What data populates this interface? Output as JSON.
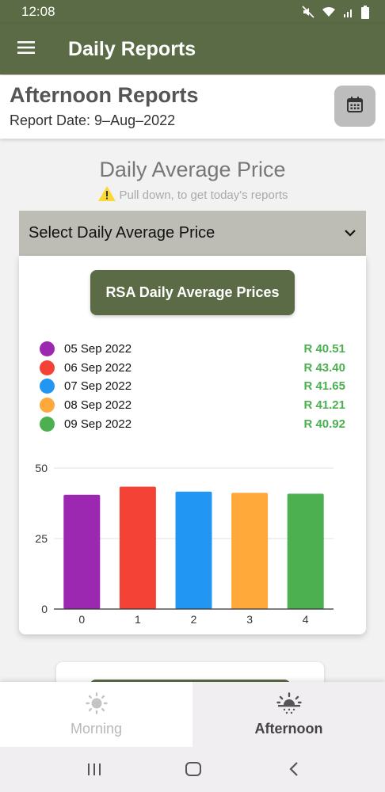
{
  "status_bar": {
    "time": "12:08"
  },
  "app_bar": {
    "title": "Daily Reports"
  },
  "header": {
    "title": "Afternoon Reports",
    "report_date": "Report Date: 9–Aug–2022"
  },
  "section": {
    "title": "Daily Average Price",
    "hint": "Pull down, to get today's reports"
  },
  "select": {
    "label": "Select Daily Average Price"
  },
  "card": {
    "button_label": "RSA Daily Average Prices",
    "legend": [
      {
        "date": "05 Sep 2022",
        "value": "R 40.51",
        "color": "#9c27b0"
      },
      {
        "date": "06 Sep 2022",
        "value": "R 43.40",
        "color": "#f44336"
      },
      {
        "date": "07 Sep 2022",
        "value": "R 41.65",
        "color": "#2196f3"
      },
      {
        "date": "08 Sep 2022",
        "value": "R 41.21",
        "color": "#ffa93a"
      },
      {
        "date": "09 Sep 2022",
        "value": "R 40.92",
        "color": "#4caf50"
      }
    ]
  },
  "chart_data": {
    "type": "bar",
    "categories": [
      "0",
      "1",
      "2",
      "3",
      "4"
    ],
    "values": [
      40.51,
      43.4,
      41.65,
      41.21,
      40.92
    ],
    "colors": [
      "#9c27b0",
      "#f44336",
      "#2196f3",
      "#ffa93a",
      "#4caf50"
    ],
    "y_ticks": [
      "0",
      "25",
      "50"
    ],
    "ylim": [
      0,
      50
    ],
    "grid": true
  },
  "bottom_nav": {
    "items": [
      {
        "label": "Morning",
        "icon": "sun-icon",
        "active": false
      },
      {
        "label": "Afternoon",
        "icon": "sunset-icon",
        "active": true
      }
    ]
  },
  "system_nav": {
    "icons": [
      "recent-apps-icon",
      "home-icon",
      "back-icon"
    ]
  }
}
